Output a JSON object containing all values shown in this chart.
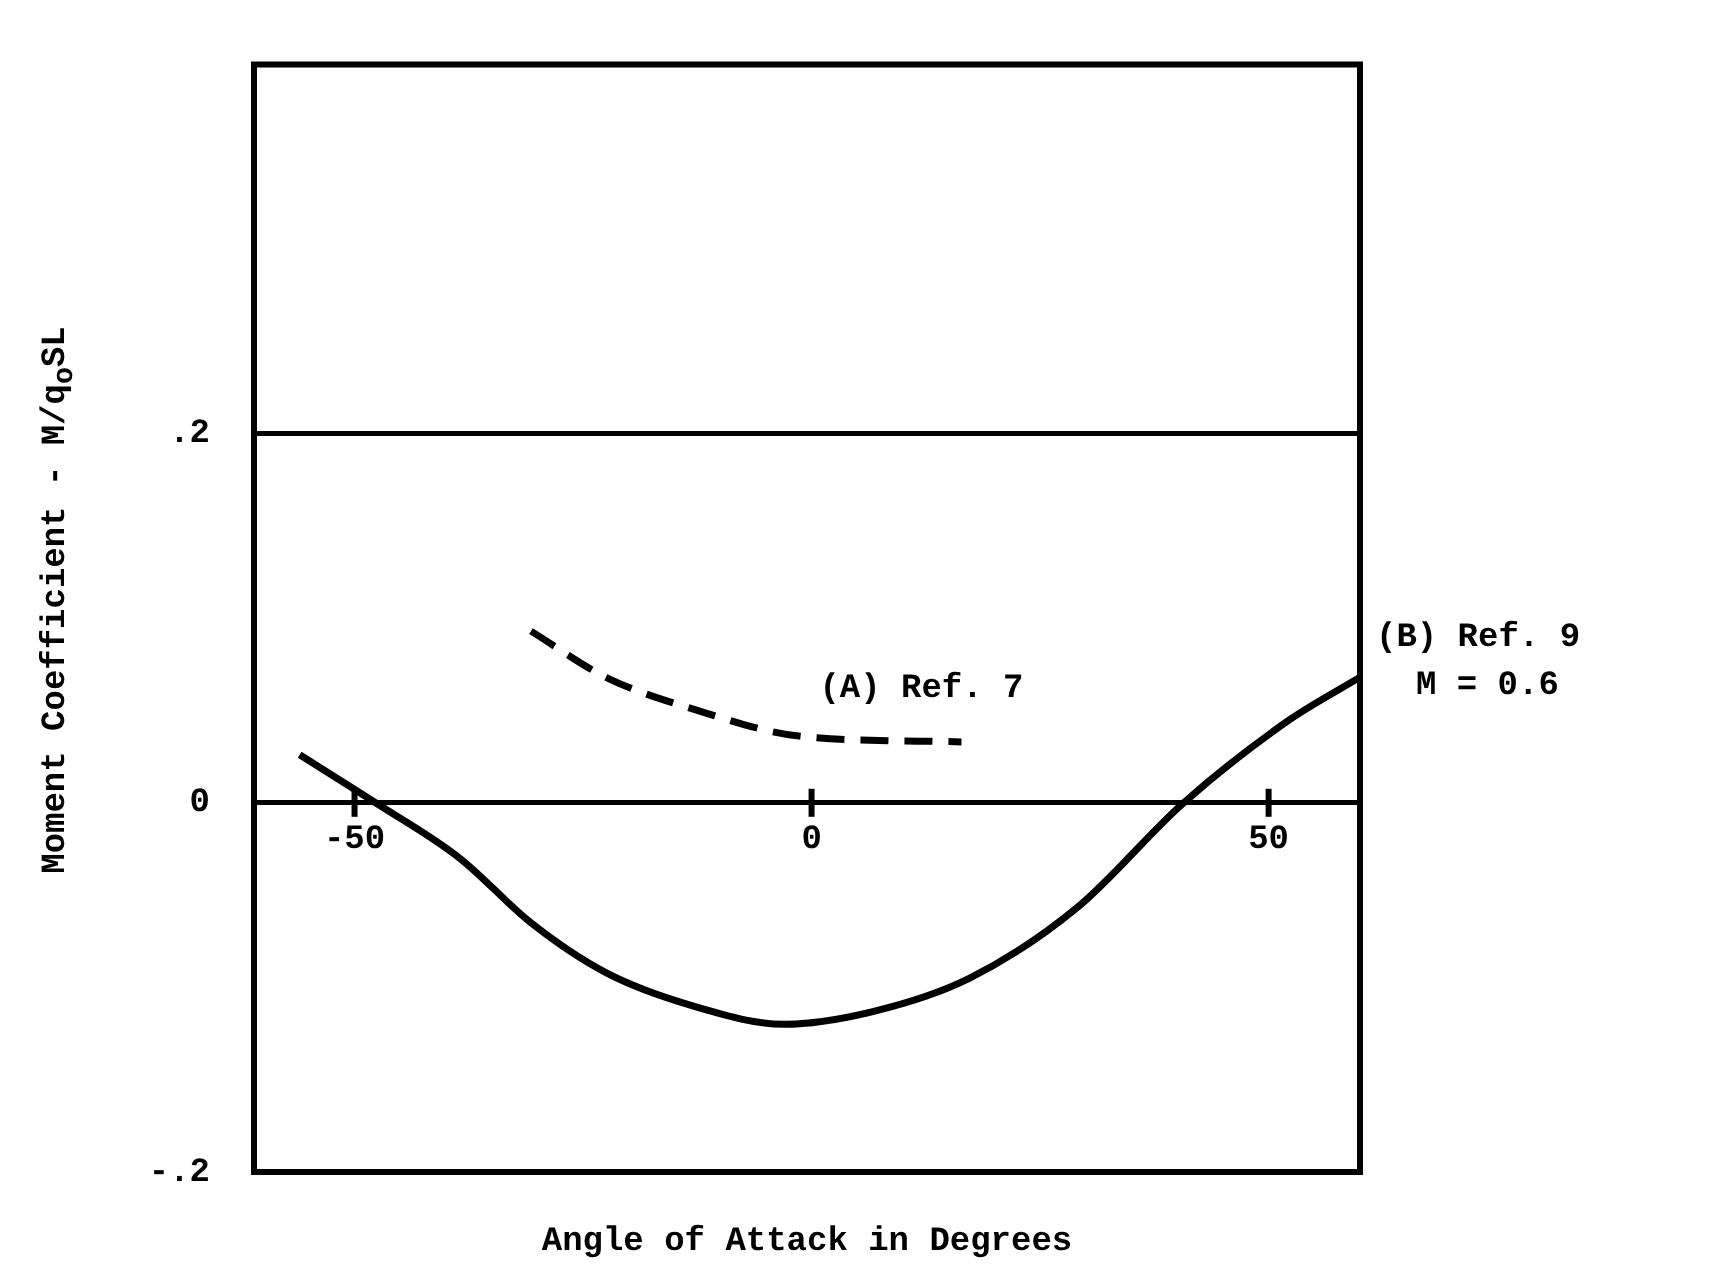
{
  "chart_data": {
    "type": "line",
    "xlabel": "Angle of Attack in Degrees",
    "ylabel": "Moment Coefficient - M/q$_{o}$SL",
    "x": [
      -56,
      -47.7,
      -38.5,
      -30.7,
      -22.5,
      -13,
      -3,
      6.8,
      17.3,
      29,
      40.7,
      52.3,
      60
    ],
    "series": [
      {
        "name": "(B) Ref. 9",
        "color": "#000000",
        "line_style": "solid",
        "values": [
          0.026,
          0,
          -0.03,
          -0.065,
          -0.092,
          -0.11,
          -0.12,
          -0.113,
          -0.095,
          -0.057,
          0,
          0.045,
          0.068
        ]
      },
      {
        "name": "(A) Ref. 7",
        "color": "#000000",
        "line_style": "dashed",
        "x": [
          -30.7,
          -22.5,
          -13.1,
          -1.1,
          16.4
        ],
        "values": [
          0.093,
          0.068,
          0.051,
          0.036,
          0.033
        ]
      }
    ],
    "annotations": [
      "M = 0.6"
    ],
    "xlim": [
      -61,
      60
    ],
    "xticks": [
      -50,
      0,
      50
    ],
    "ylim": [
      -0.2,
      0.4
    ],
    "yticks": [
      {
        "value": -0.2,
        "label": "-.2"
      },
      0,
      {
        "value": 0.2,
        "label": ".2"
      }
    ],
    "grid": "y",
    "legend": false,
    "marker": "none"
  }
}
